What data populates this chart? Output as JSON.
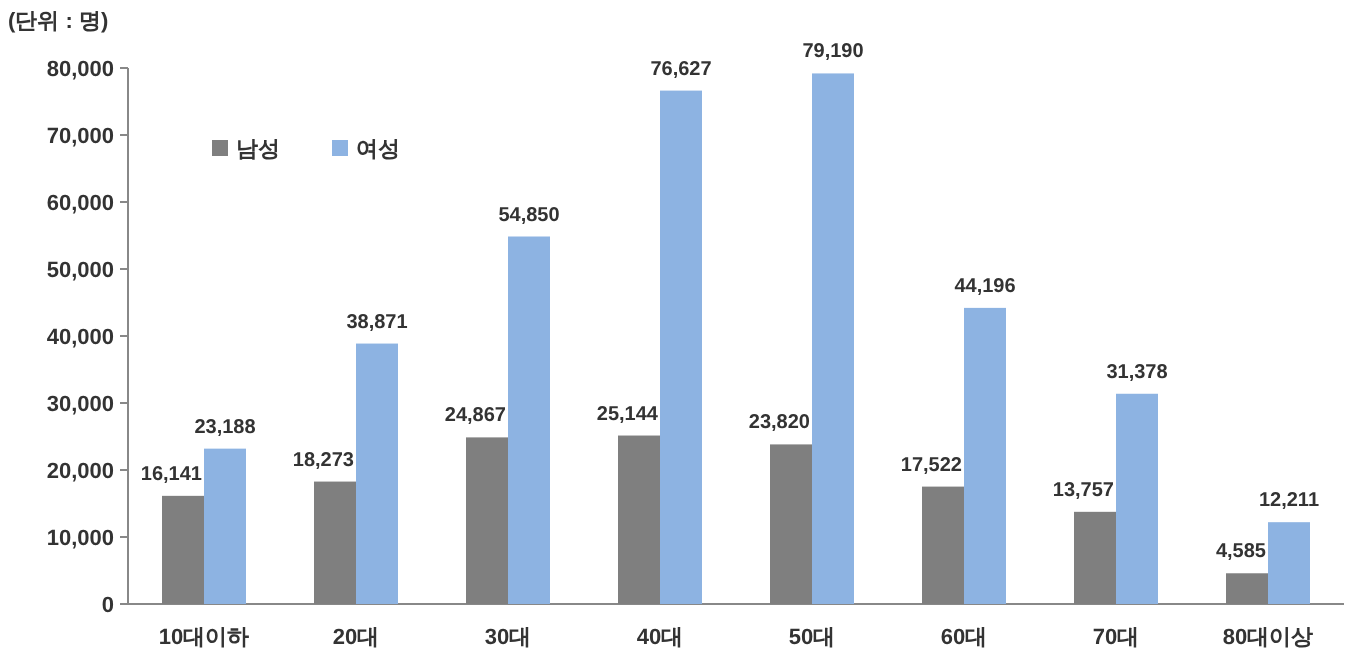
{
  "chart_data": {
    "type": "bar",
    "ylabel": "(단위 : 명)",
    "categories": [
      "10대이하",
      "20대",
      "30대",
      "40대",
      "50대",
      "60대",
      "70대",
      "80대이상"
    ],
    "series": [
      {
        "name": "남성",
        "color": "#7f7f7f",
        "values": [
          16141,
          18273,
          24867,
          25144,
          23820,
          17522,
          13757,
          4585
        ],
        "value_labels": [
          "16,141",
          "18,273",
          "24,867",
          "25,144",
          "23,820",
          "17,522",
          "13,757",
          "4,585"
        ]
      },
      {
        "name": "여성",
        "color": "#8db3e2",
        "values": [
          23188,
          38871,
          54850,
          76627,
          79190,
          44196,
          31378,
          12211
        ],
        "value_labels": [
          "23,188",
          "38,871",
          "54,850",
          "76,627",
          "79,190",
          "44,196",
          "31,378",
          "12,211"
        ]
      }
    ],
    "ylim": [
      0,
      80000
    ],
    "yticks": [
      0,
      {
        "value": 10000,
        "label": "10,000"
      },
      {
        "value": 20000,
        "label": "20,000"
      },
      {
        "value": 30000,
        "label": "30,000"
      },
      {
        "value": 40000,
        "label": "40,000"
      },
      {
        "value": 50000,
        "label": "50,000"
      },
      {
        "value": 60000,
        "label": "60,000"
      },
      {
        "value": 70000,
        "label": "70,000"
      },
      {
        "value": 80000,
        "label": "80,000"
      }
    ],
    "legend": "top left"
  }
}
